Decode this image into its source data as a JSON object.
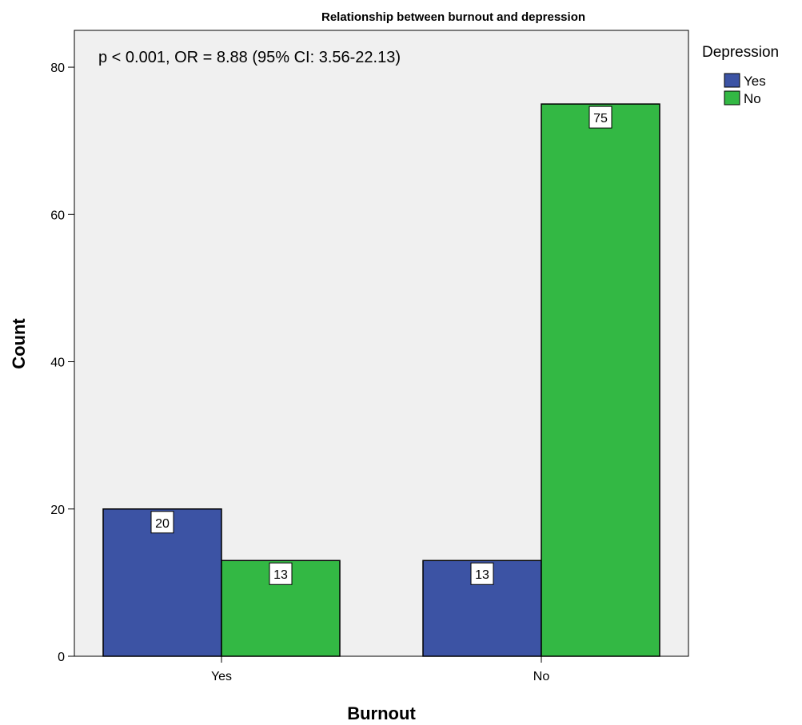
{
  "chart_data": {
    "type": "bar",
    "title": "Relationship between burnout and depression",
    "xlabel": "Burnout",
    "ylabel": "Count",
    "categories": [
      "Yes",
      "No"
    ],
    "ylim": [
      0,
      85
    ],
    "yticks": [
      "0",
      "20",
      "40",
      "60",
      "80"
    ],
    "grid": false,
    "annotation": "p < 0.001, OR = 8.88 (95% CI: 3.56-22.13)",
    "legend": {
      "title": "Depression",
      "placement": "right"
    },
    "series": [
      {
        "name": "Yes",
        "color": "#3c53a4",
        "values": [
          20,
          13
        ]
      },
      {
        "name": "No",
        "color": "#33b844",
        "values": [
          13,
          75
        ]
      }
    ],
    "data_labels": [
      [
        "20",
        "13"
      ],
      [
        "13",
        "75"
      ]
    ]
  }
}
